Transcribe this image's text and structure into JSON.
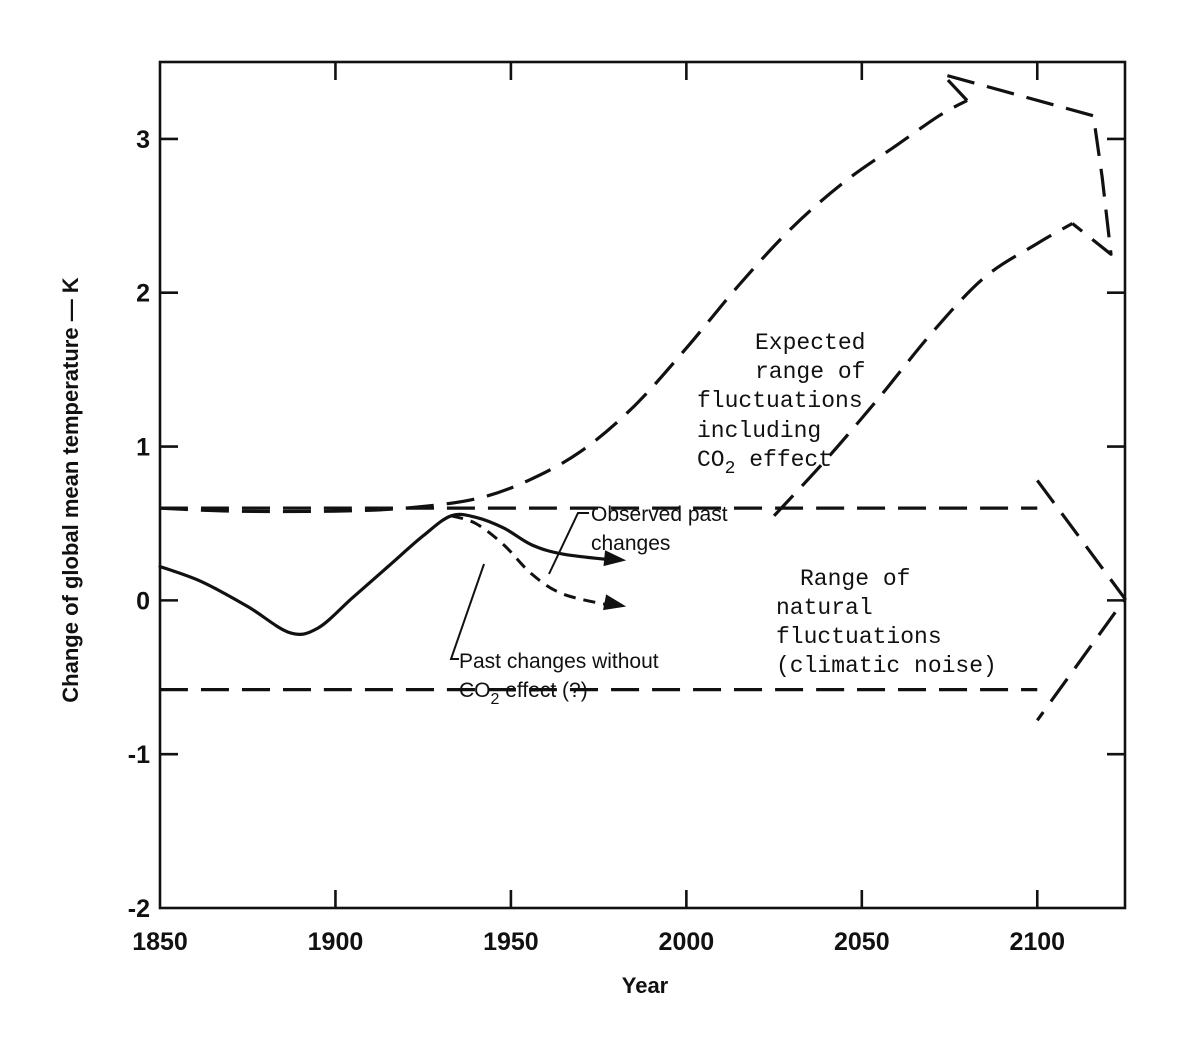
{
  "chart_data": {
    "type": "line",
    "title": "",
    "xlabel": "Year",
    "ylabel": "Change of global mean temperature — K",
    "xlim": [
      1850,
      2125
    ],
    "ylim": [
      -2,
      3.5
    ],
    "x_ticks": [
      1850,
      1900,
      1950,
      2000,
      2050,
      2100
    ],
    "y_ticks": [
      -2,
      -1,
      0,
      1,
      2,
      3
    ],
    "grid": false,
    "series": [
      {
        "name": "Observed past changes",
        "style": "solid",
        "x": [
          1850,
          1862,
          1875,
          1887,
          1895,
          1905,
          1915,
          1925,
          1933,
          1940,
          1948,
          1956,
          1965,
          1980
        ],
        "y": [
          0.22,
          0.12,
          -0.04,
          -0.21,
          -0.18,
          0.02,
          0.22,
          0.42,
          0.55,
          0.54,
          0.47,
          0.36,
          0.3,
          0.26
        ]
      },
      {
        "name": "Past changes without CO2 effect (?)",
        "style": "dashed",
        "x": [
          1933,
          1940,
          1948,
          1956,
          1965,
          1980
        ],
        "y": [
          0.55,
          0.5,
          0.36,
          0.17,
          0.04,
          -0.04
        ]
      },
      {
        "name": "Expected range of fluctuations including CO2 effect (upper)",
        "style": "dashed",
        "x": [
          1850,
          1870,
          1900,
          1920,
          1940,
          1955,
          1970,
          1985,
          2000,
          2015,
          2030,
          2045,
          2060,
          2072,
          2080
        ],
        "y": [
          0.6,
          0.58,
          0.58,
          0.6,
          0.66,
          0.78,
          0.97,
          1.26,
          1.64,
          2.05,
          2.42,
          2.72,
          2.96,
          3.15,
          3.25
        ]
      },
      {
        "name": "Expected range of fluctuations including CO2 effect (lower)",
        "style": "dashed",
        "x": [
          2025,
          2040,
          2055,
          2070,
          2085,
          2100,
          2110
        ],
        "y": [
          0.55,
          0.92,
          1.32,
          1.74,
          2.1,
          2.32,
          2.45
        ]
      },
      {
        "name": "Range of natural fluctuations (upper)",
        "style": "dashed",
        "x": [
          1850,
          2100
        ],
        "y": [
          0.6,
          0.6
        ]
      },
      {
        "name": "Range of natural fluctuations (lower)",
        "style": "dashed",
        "x": [
          1850,
          2100
        ],
        "y": [
          -0.58,
          -0.58
        ]
      }
    ],
    "annotations": {
      "expected": [
        "Expected",
        "range of",
        "fluctuations",
        "including"
      ],
      "co2_prefix": "CO",
      "co2_sub": "2",
      "co2_suffix": " effect",
      "natural": [
        "Range of",
        "natural",
        "fluctuations",
        "(climatic noise)"
      ],
      "observed": [
        "Observed past",
        "changes"
      ],
      "without_line1": "Past changes without",
      "without_co2": "CO",
      "without_sub": "2",
      "without_suffix": " effect (?)"
    }
  }
}
